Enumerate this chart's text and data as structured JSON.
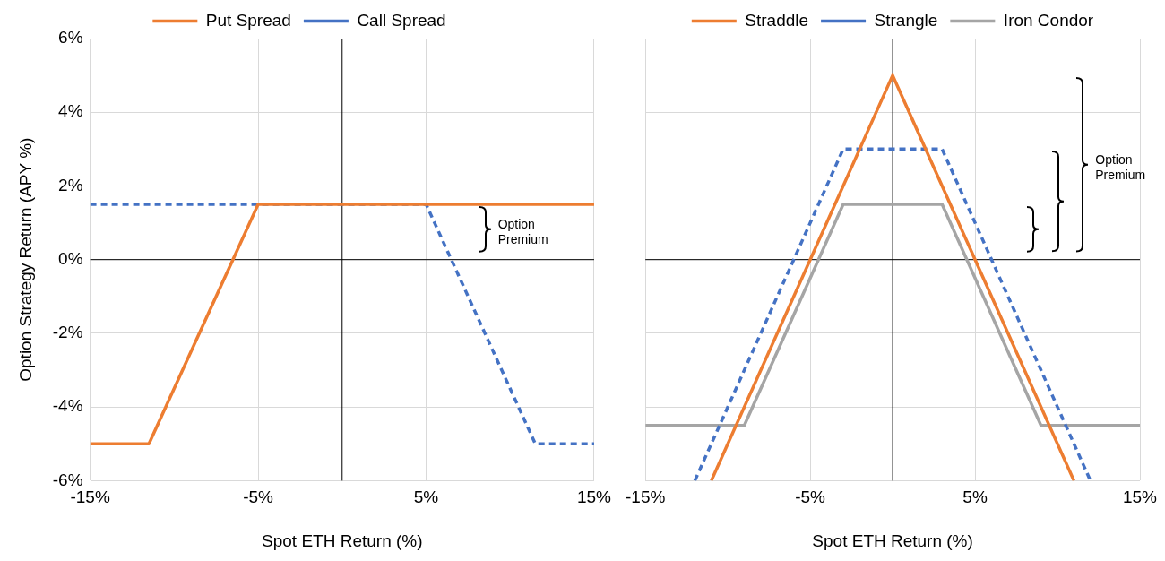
{
  "chart_data": [
    {
      "type": "line",
      "xlabel": "Spot ETH Return (%)",
      "ylabel": "Option Strategy Return (APY %)",
      "xlim": [
        -15,
        15
      ],
      "ylim": [
        -6,
        6
      ],
      "xticks": [
        {
          "value": -15,
          "label": "-15%"
        },
        {
          "value": -5,
          "label": "-5%"
        },
        {
          "value": 5,
          "label": "5%"
        },
        {
          "value": 15,
          "label": "15%"
        }
      ],
      "yticks": [
        {
          "value": -6,
          "label": "-6%"
        },
        {
          "value": -4,
          "label": "-4%"
        },
        {
          "value": -2,
          "label": "-2%"
        },
        {
          "value": 0,
          "label": "0%"
        },
        {
          "value": 2,
          "label": "2%"
        },
        {
          "value": 4,
          "label": "4%"
        },
        {
          "value": 6,
          "label": "6%"
        }
      ],
      "grid": true,
      "legend": "top",
      "marker": "none",
      "annotations": [
        "Option Premium"
      ],
      "series": [
        {
          "name": "Put Spread",
          "color": "#ed7d31",
          "line_style": "solid",
          "x": [
            -15,
            -11.5,
            -5,
            15
          ],
          "values": [
            -5,
            -5,
            1.5,
            1.5
          ]
        },
        {
          "name": "Call Spread",
          "color": "#4472c4",
          "line_style": "dashed",
          "x": [
            -15,
            5,
            11.5,
            15
          ],
          "values": [
            1.5,
            1.5,
            -5,
            -5
          ]
        }
      ]
    },
    {
      "type": "line",
      "xlabel": "Spot ETH Return (%)",
      "xlim": [
        -15,
        15
      ],
      "ylim": [
        -6,
        6
      ],
      "xticks": [
        {
          "value": -15,
          "label": "-15%"
        },
        {
          "value": -5,
          "label": "-5%"
        },
        {
          "value": 5,
          "label": "5%"
        },
        {
          "value": 15,
          "label": "15%"
        }
      ],
      "tick_labels": "x",
      "grid": true,
      "legend": "top",
      "marker": "none",
      "annotations": [
        "Option Premium"
      ],
      "yticks": [
        {
          "value": -6,
          "label": null
        },
        {
          "value": -4,
          "label": null
        },
        {
          "value": -2,
          "label": null
        },
        {
          "value": 0,
          "label": null
        },
        {
          "value": 2,
          "label": null
        },
        {
          "value": 4,
          "label": null
        },
        {
          "value": 6,
          "label": null
        }
      ],
      "series": [
        {
          "name": "Straddle",
          "color": "#ed7d31",
          "line_style": "solid",
          "x": [
            -11,
            0,
            11
          ],
          "values": [
            -6,
            5,
            -6
          ]
        },
        {
          "name": "Strangle",
          "color": "#4472c4",
          "line_style": "dashed",
          "x": [
            -12,
            -3,
            3,
            12
          ],
          "values": [
            -6,
            3,
            3,
            -6
          ]
        },
        {
          "name": "Iron Condor",
          "color": "#a5a5a5",
          "line_style": "solid",
          "x": [
            -15,
            -9,
            -3,
            3,
            9,
            15
          ],
          "values": [
            -4.5,
            -4.5,
            1.5,
            1.5,
            -4.5,
            -4.5
          ]
        }
      ]
    }
  ]
}
